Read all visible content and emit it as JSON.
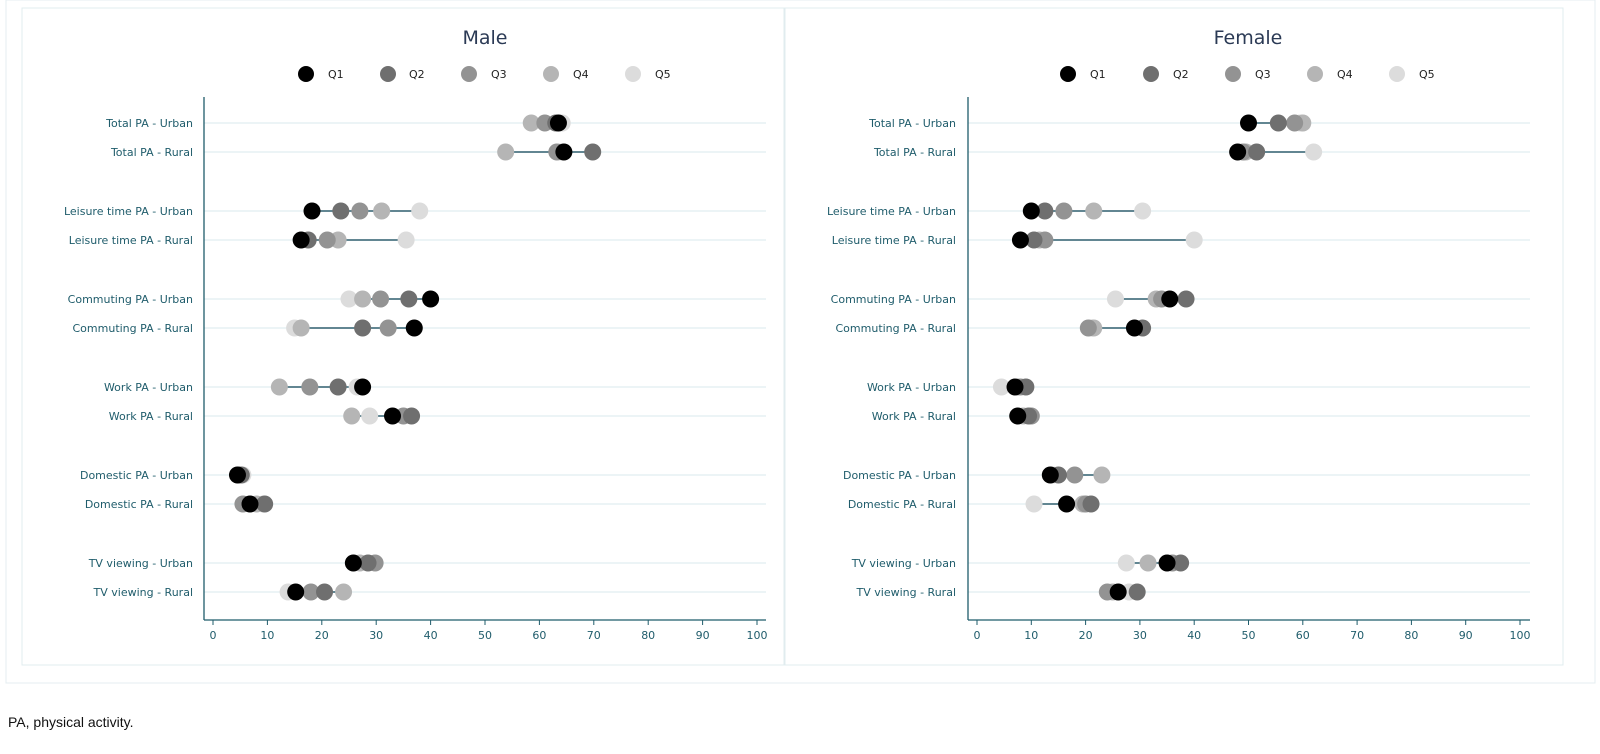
{
  "caption": "PA, physical activity.",
  "chart_data": [
    {
      "type": "scatter",
      "title": "Male",
      "xlim": [
        0,
        100
      ],
      "xticks": [
        0,
        10,
        20,
        30,
        40,
        50,
        60,
        70,
        80,
        90,
        100
      ],
      "xlabel": "",
      "ylabel": "",
      "legend_position": "top",
      "categories": [
        "Total PA - Urban",
        "Total PA - Rural",
        "Leisure time PA - Urban",
        "Leisure time PA - Rural",
        "Commuting PA - Urban",
        "Commuting PA - Rural",
        "Work PA - Urban",
        "Work PA - Rural",
        "Domestic PA - Urban",
        "Domestic PA - Rural",
        "TV viewing - Urban",
        "TV viewing - Rural"
      ],
      "series": [
        {
          "name": "Q1",
          "color": "#000000",
          "values": [
            63.5,
            64.5,
            18.2,
            16.2,
            40.0,
            37.0,
            27.5,
            33.0,
            4.5,
            6.8,
            25.8,
            15.2
          ]
        },
        {
          "name": "Q2",
          "color": "#6f6f6f",
          "values": [
            63.0,
            69.8,
            23.5,
            17.5,
            36.0,
            27.5,
            23.0,
            36.5,
            5.2,
            9.5,
            28.5,
            20.5
          ]
        },
        {
          "name": "Q3",
          "color": "#939393",
          "values": [
            61.0,
            63.2,
            27.0,
            21.0,
            30.8,
            32.2,
            17.8,
            35.0,
            4.8,
            5.5,
            29.8,
            18.0
          ]
        },
        {
          "name": "Q4",
          "color": "#b5b5b5",
          "values": [
            58.5,
            53.8,
            31.0,
            23.0,
            27.5,
            16.2,
            12.2,
            25.5,
            5.0,
            8.0,
            27.0,
            24.0
          ]
        },
        {
          "name": "Q5",
          "color": "#dcdcdc",
          "values": [
            64.2,
            63.8,
            38.0,
            35.5,
            25.0,
            15.0,
            26.5,
            28.8,
            5.5,
            9.2,
            26.0,
            13.8
          ]
        }
      ]
    },
    {
      "type": "scatter",
      "title": "Female",
      "xlim": [
        0,
        100
      ],
      "xticks": [
        0,
        10,
        20,
        30,
        40,
        50,
        60,
        70,
        80,
        90,
        100
      ],
      "xlabel": "",
      "ylabel": "",
      "legend_position": "top",
      "categories": [
        "Total PA - Urban",
        "Total PA - Rural",
        "Leisure time PA - Urban",
        "Leisure time PA - Rural",
        "Commuting PA - Urban",
        "Commuting PA - Rural",
        "Work PA - Urban",
        "Work PA - Rural",
        "Domestic PA - Urban",
        "Domestic PA - Rural",
        "TV viewing - Urban",
        "TV viewing - Rural"
      ],
      "series": [
        {
          "name": "Q1",
          "color": "#000000",
          "values": [
            50.0,
            48.0,
            10.0,
            8.0,
            35.5,
            29.0,
            7.0,
            7.5,
            13.5,
            16.5,
            35.0,
            26.0
          ]
        },
        {
          "name": "Q2",
          "color": "#6f6f6f",
          "values": [
            55.5,
            51.5,
            12.5,
            10.5,
            38.5,
            30.5,
            9.0,
            9.5,
            15.0,
            21.0,
            37.5,
            29.5
          ]
        },
        {
          "name": "Q3",
          "color": "#939393",
          "values": [
            58.5,
            49.0,
            16.0,
            12.5,
            34.0,
            20.5,
            8.0,
            10.0,
            18.0,
            20.0,
            36.0,
            24.0
          ]
        },
        {
          "name": "Q4",
          "color": "#b5b5b5",
          "values": [
            60.0,
            49.5,
            21.5,
            11.5,
            33.0,
            21.5,
            7.5,
            8.5,
            23.0,
            19.5,
            31.5,
            25.0
          ]
        },
        {
          "name": "Q5",
          "color": "#dcdcdc",
          "values": [
            59.5,
            62.0,
            30.5,
            40.0,
            25.5,
            21.0,
            4.5,
            10.0,
            14.0,
            10.5,
            27.5,
            28.0
          ]
        }
      ]
    }
  ]
}
